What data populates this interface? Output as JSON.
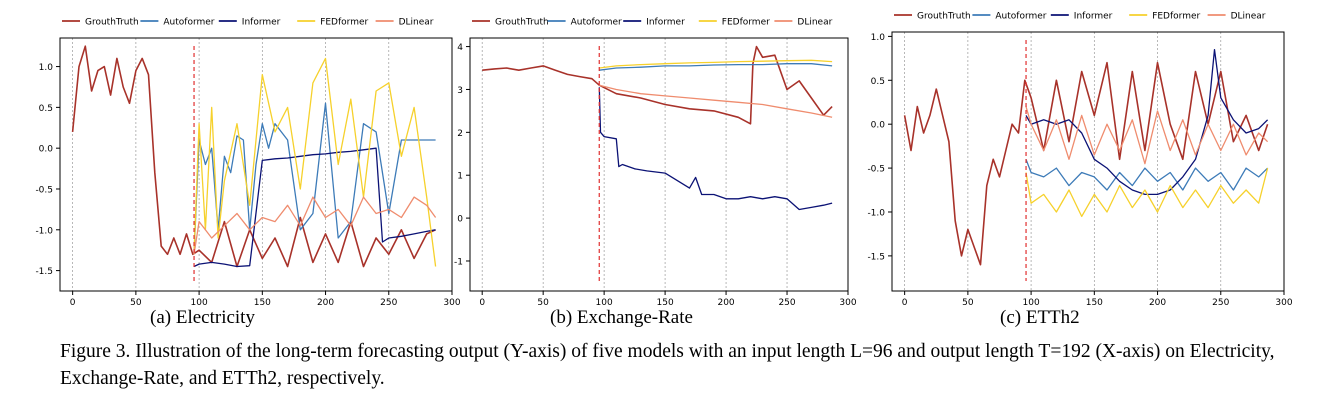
{
  "colors": {
    "GrouthTruth": "#a8322a",
    "Autoformer": "#3d7bb8",
    "Informer": "#0b1275",
    "FEDformer": "#f6d12c",
    "DLinear": "#ef8c6e",
    "split_line": "#e03030",
    "grid": "#9a9a9a"
  },
  "legend_labels": [
    "GrouthTruth",
    "Autoformer",
    "Informer",
    "FEDformer",
    "DLinear"
  ],
  "panels": [
    {
      "id": "electricity",
      "caption": "(a)  Electricity"
    },
    {
      "id": "exchange",
      "caption": "(b)  Exchange-Rate"
    },
    {
      "id": "etth2",
      "caption": "(c)  ETTh2"
    }
  ],
  "figure_caption": "Figure 3.  Illustration of the long-term forecasting output (Y-axis) of five models with an input length L=96 and output length T=192 (X-axis) on Electricity, Exchange-Rate, and ETTh2, respectively.",
  "chart_data": [
    {
      "type": "line",
      "xlim": [
        -10,
        300
      ],
      "ylim": [
        -1.75,
        1.35
      ],
      "xticks": [
        0,
        50,
        100,
        150,
        200,
        250,
        300
      ],
      "yticks": [
        -1.5,
        -1.0,
        -0.5,
        0.0,
        0.5,
        1.0
      ],
      "grid": "vertical",
      "legend": "top",
      "split_x": 96,
      "series": [
        {
          "name": "GrouthTruth",
          "x": [
            0,
            5,
            10,
            15,
            20,
            25,
            30,
            35,
            40,
            45,
            50,
            55,
            60,
            65,
            70,
            75,
            80,
            85,
            90,
            95,
            100,
            110,
            120,
            130,
            140,
            150,
            160,
            170,
            180,
            190,
            200,
            210,
            220,
            230,
            240,
            250,
            260,
            270,
            280,
            287
          ],
          "y": [
            0.2,
            1.0,
            1.25,
            0.7,
            0.95,
            1.0,
            0.65,
            1.1,
            0.75,
            0.55,
            0.95,
            1.1,
            0.9,
            -0.3,
            -1.2,
            -1.3,
            -1.1,
            -1.3,
            -1.05,
            -1.3,
            -1.25,
            -1.4,
            -0.9,
            -1.45,
            -1.0,
            -1.35,
            -1.1,
            -1.45,
            -0.85,
            -1.4,
            -1.05,
            -1.4,
            -0.9,
            -1.45,
            -1.1,
            -1.3,
            -1.0,
            -1.35,
            -1.05,
            -1.0
          ]
        },
        {
          "name": "Autoformer",
          "x": [
            96,
            100,
            105,
            110,
            115,
            120,
            125,
            130,
            135,
            140,
            145,
            150,
            155,
            160,
            170,
            180,
            190,
            200,
            210,
            220,
            230,
            240,
            250,
            260,
            270,
            280,
            287
          ],
          "y": [
            -1.3,
            0.1,
            -0.2,
            0.0,
            -1.0,
            -0.1,
            -0.3,
            0.15,
            0.1,
            -1.0,
            -0.2,
            0.3,
            0.0,
            0.3,
            0.1,
            -1.0,
            -0.8,
            0.55,
            -1.1,
            -0.9,
            0.3,
            0.2,
            -0.8,
            0.1,
            0.1,
            0.1,
            0.1
          ]
        },
        {
          "name": "Informer",
          "x": [
            96,
            100,
            110,
            120,
            130,
            140,
            150,
            160,
            170,
            180,
            190,
            200,
            210,
            220,
            230,
            240,
            245,
            250,
            260,
            270,
            280,
            287
          ],
          "y": [
            -1.45,
            -1.42,
            -1.4,
            -1.42,
            -1.45,
            -1.44,
            -0.15,
            -0.13,
            -0.12,
            -0.1,
            -0.08,
            -0.07,
            -0.05,
            -0.04,
            -0.02,
            0.0,
            -1.15,
            -1.1,
            -1.08,
            -1.05,
            -1.02,
            -1.0
          ]
        },
        {
          "name": "FEDformer",
          "x": [
            96,
            100,
            105,
            110,
            115,
            120,
            130,
            140,
            150,
            160,
            170,
            180,
            190,
            200,
            210,
            220,
            230,
            240,
            250,
            260,
            270,
            280,
            287
          ],
          "y": [
            -1.3,
            0.3,
            -1.0,
            0.5,
            -1.1,
            -0.4,
            0.3,
            -0.7,
            0.9,
            0.2,
            0.5,
            -0.5,
            0.8,
            1.1,
            -0.2,
            0.6,
            -0.6,
            0.7,
            0.8,
            -0.1,
            0.5,
            -0.6,
            -1.45
          ]
        },
        {
          "name": "DLinear",
          "x": [
            96,
            100,
            110,
            120,
            130,
            140,
            150,
            160,
            170,
            180,
            190,
            200,
            210,
            220,
            230,
            240,
            250,
            260,
            270,
            280,
            287
          ],
          "y": [
            -1.3,
            -0.9,
            -1.1,
            -0.95,
            -0.8,
            -1.0,
            -0.85,
            -0.9,
            -0.7,
            -0.95,
            -0.6,
            -0.85,
            -0.75,
            -0.95,
            -0.6,
            -0.8,
            -0.75,
            -0.85,
            -0.6,
            -0.7,
            -0.85
          ]
        }
      ]
    },
    {
      "type": "line",
      "xlim": [
        -10,
        300
      ],
      "ylim": [
        -1.7,
        4.2
      ],
      "xticks": [
        0,
        50,
        100,
        150,
        200,
        250,
        300
      ],
      "yticks": [
        -1,
        0,
        1,
        2,
        3,
        4
      ],
      "grid": "vertical",
      "legend": "top",
      "split_x": 96,
      "series": [
        {
          "name": "GrouthTruth",
          "x": [
            0,
            10,
            20,
            30,
            40,
            50,
            60,
            70,
            80,
            90,
            96,
            110,
            130,
            150,
            170,
            190,
            210,
            220,
            222,
            225,
            230,
            240,
            250,
            260,
            270,
            280,
            287
          ],
          "y": [
            3.45,
            3.48,
            3.5,
            3.45,
            3.5,
            3.55,
            3.45,
            3.35,
            3.3,
            3.25,
            3.1,
            2.9,
            2.8,
            2.65,
            2.55,
            2.5,
            2.35,
            2.2,
            3.6,
            4.0,
            3.75,
            3.8,
            3.0,
            3.2,
            2.8,
            2.4,
            2.6
          ]
        },
        {
          "name": "Autoformer",
          "x": [
            96,
            110,
            130,
            150,
            170,
            190,
            210,
            230,
            250,
            270,
            287
          ],
          "y": [
            3.45,
            3.5,
            3.52,
            3.55,
            3.55,
            3.57,
            3.58,
            3.58,
            3.6,
            3.6,
            3.55
          ]
        },
        {
          "name": "Informer",
          "x": [
            96,
            97,
            100,
            110,
            112,
            115,
            125,
            135,
            150,
            170,
            175,
            180,
            190,
            200,
            210,
            220,
            230,
            240,
            250,
            260,
            270,
            280,
            287
          ],
          "y": [
            3.05,
            2.0,
            1.9,
            1.85,
            1.2,
            1.25,
            1.15,
            1.1,
            1.05,
            0.7,
            0.95,
            0.55,
            0.55,
            0.45,
            0.45,
            0.5,
            0.45,
            0.5,
            0.45,
            0.2,
            0.25,
            0.3,
            0.35
          ]
        },
        {
          "name": "FEDformer",
          "x": [
            96,
            110,
            130,
            150,
            170,
            190,
            210,
            230,
            250,
            270,
            287
          ],
          "y": [
            3.5,
            3.55,
            3.58,
            3.6,
            3.62,
            3.63,
            3.65,
            3.66,
            3.67,
            3.68,
            3.65
          ]
        },
        {
          "name": "DLinear",
          "x": [
            96,
            110,
            130,
            150,
            170,
            190,
            210,
            230,
            250,
            270,
            287
          ],
          "y": [
            3.1,
            3.0,
            2.9,
            2.85,
            2.8,
            2.75,
            2.7,
            2.65,
            2.55,
            2.45,
            2.35
          ]
        }
      ]
    },
    {
      "type": "line",
      "xlim": [
        -10,
        300
      ],
      "ylim": [
        -1.9,
        1.05
      ],
      "xticks": [
        0,
        50,
        100,
        150,
        200,
        250,
        300
      ],
      "yticks": [
        -1.5,
        -1.0,
        -0.5,
        0.0,
        0.5,
        1.0
      ],
      "grid": "vertical",
      "legend": "top",
      "split_x": 96,
      "series": [
        {
          "name": "GrouthTruth",
          "x": [
            0,
            5,
            10,
            15,
            20,
            25,
            30,
            35,
            40,
            45,
            50,
            55,
            60,
            65,
            70,
            75,
            80,
            85,
            90,
            95,
            100,
            110,
            120,
            130,
            140,
            150,
            160,
            170,
            180,
            190,
            200,
            210,
            220,
            230,
            240,
            250,
            260,
            270,
            280,
            287
          ],
          "y": [
            0.1,
            -0.3,
            0.2,
            -0.1,
            0.1,
            0.4,
            0.1,
            -0.2,
            -1.1,
            -1.5,
            -1.2,
            -1.4,
            -1.6,
            -0.7,
            -0.4,
            -0.6,
            -0.3,
            0.0,
            -0.1,
            0.5,
            0.3,
            -0.3,
            0.5,
            -0.2,
            0.6,
            0.1,
            0.7,
            -0.4,
            0.6,
            -0.3,
            0.7,
            0.0,
            -0.4,
            0.6,
            0.0,
            0.6,
            -0.2,
            0.1,
            -0.3,
            0.0
          ]
        },
        {
          "name": "Autoformer",
          "x": [
            96,
            100,
            110,
            120,
            130,
            140,
            150,
            160,
            170,
            180,
            190,
            200,
            210,
            220,
            230,
            240,
            250,
            260,
            270,
            280,
            287
          ],
          "y": [
            -0.4,
            -0.55,
            -0.6,
            -0.5,
            -0.7,
            -0.55,
            -0.6,
            -0.75,
            -0.55,
            -0.7,
            -0.5,
            -0.65,
            -0.55,
            -0.75,
            -0.5,
            -0.65,
            -0.55,
            -0.75,
            -0.5,
            -0.6,
            -0.5
          ]
        },
        {
          "name": "Informer",
          "x": [
            96,
            100,
            110,
            120,
            130,
            140,
            150,
            160,
            170,
            180,
            190,
            200,
            210,
            220,
            230,
            240,
            245,
            250,
            260,
            270,
            280,
            287
          ],
          "y": [
            0.1,
            0.0,
            0.05,
            0.0,
            0.05,
            -0.1,
            -0.4,
            -0.5,
            -0.65,
            -0.75,
            -0.8,
            -0.8,
            -0.75,
            -0.6,
            -0.4,
            0.1,
            0.85,
            0.3,
            0.05,
            -0.1,
            -0.05,
            0.05
          ]
        },
        {
          "name": "FEDformer",
          "x": [
            96,
            100,
            110,
            120,
            130,
            140,
            150,
            160,
            170,
            180,
            190,
            200,
            210,
            220,
            230,
            240,
            250,
            260,
            270,
            280,
            287
          ],
          "y": [
            -0.55,
            -0.9,
            -0.8,
            -1.0,
            -0.75,
            -1.05,
            -0.8,
            -1.0,
            -0.7,
            -0.95,
            -0.75,
            -1.0,
            -0.7,
            -0.95,
            -0.75,
            -0.95,
            -0.7,
            -0.9,
            -0.75,
            -0.9,
            -0.5
          ]
        },
        {
          "name": "DLinear",
          "x": [
            96,
            100,
            110,
            120,
            130,
            140,
            150,
            160,
            170,
            180,
            190,
            200,
            210,
            220,
            230,
            240,
            250,
            260,
            270,
            280,
            287
          ],
          "y": [
            0.2,
            0.0,
            -0.3,
            0.05,
            -0.4,
            0.1,
            -0.35,
            0.0,
            -0.3,
            0.05,
            -0.45,
            0.15,
            -0.3,
            0.05,
            -0.35,
            0.0,
            -0.3,
            0.0,
            -0.35,
            -0.1,
            -0.2
          ]
        }
      ]
    }
  ]
}
